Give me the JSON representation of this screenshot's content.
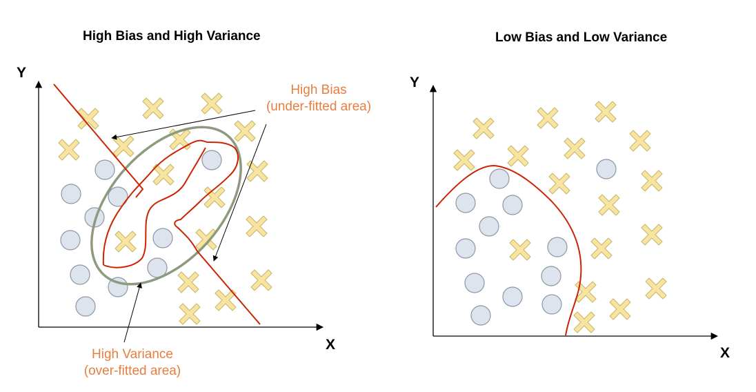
{
  "colors": {
    "cross_fill": "#f7e4a0",
    "cross_stroke": "#c8b366",
    "circle_fill": "#dde4ee",
    "circle_stroke": "#8c97a6",
    "boundary": "#cc2200",
    "ellipse": "#8e9a7e",
    "annotation": "#e87d3e",
    "axis": "#000000"
  },
  "panels": [
    {
      "title": "High Bias and High Variance",
      "x_label": "X",
      "y_label": "Y",
      "annotations": {
        "high_bias_line1": "High Bias",
        "high_bias_line2": "(under-fitted area)",
        "high_variance_line1": "High Variance",
        "high_variance_line2": "(over-fitted area)"
      }
    },
    {
      "title": "Low Bias and Low Variance",
      "x_label": "X",
      "y_label": "Y"
    }
  ],
  "icons": {
    "cross": "x-marker-icon",
    "circle": "circle-marker-icon"
  }
}
